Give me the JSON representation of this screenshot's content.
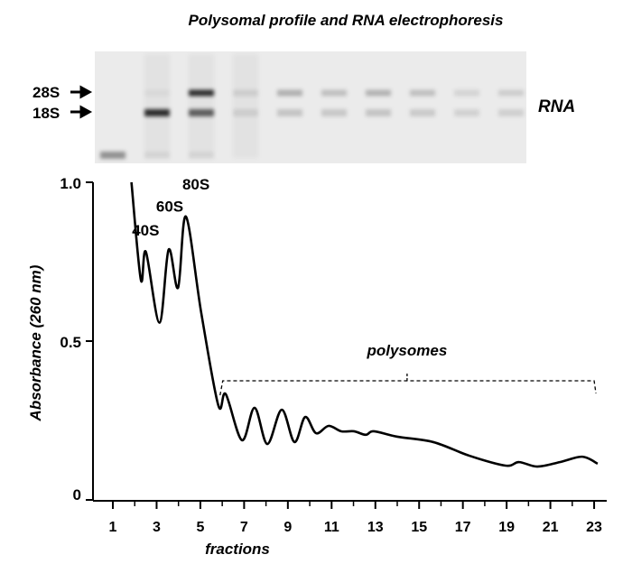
{
  "chart_data": {
    "type": "line",
    "title": "Polysomal profile and RNA electrophoresis",
    "xlabel": "fractions",
    "ylabel": "Absorbance (260 nm)",
    "xlim": [
      0,
      23.3
    ],
    "ylim": [
      0,
      1.0
    ],
    "xticks": [
      1,
      3,
      5,
      7,
      9,
      11,
      13,
      15,
      17,
      19,
      21,
      23
    ],
    "xminor": [
      2,
      4,
      6,
      8,
      10,
      12,
      14,
      16,
      18,
      20,
      22
    ],
    "yticks": [
      {
        "value": 0,
        "label": "0"
      },
      {
        "value": 0.5,
        "label": "0.5"
      },
      {
        "value": 1.0,
        "label": "1.0"
      }
    ],
    "grid": false,
    "series": [
      {
        "x": [
          1.85,
          2.28,
          2.51,
          3.13,
          3.55,
          3.98,
          4.34,
          5.04,
          5.82,
          6.16,
          6.9,
          7.48,
          8.06,
          8.72,
          9.3,
          9.79,
          10.29,
          10.86,
          11.44,
          12.02,
          12.56,
          12.93,
          14.0,
          15.65,
          17.3,
          18.95,
          19.57,
          20.4,
          21.43,
          22.46,
          23.16
        ],
        "y": [
          1.0,
          0.693,
          0.781,
          0.558,
          0.788,
          0.668,
          0.892,
          0.589,
          0.298,
          0.333,
          0.188,
          0.29,
          0.176,
          0.284,
          0.182,
          0.261,
          0.21,
          0.233,
          0.216,
          0.216,
          0.205,
          0.216,
          0.199,
          0.182,
          0.139,
          0.108,
          0.119,
          0.105,
          0.119,
          0.136,
          0.114
        ]
      }
    ],
    "annotations": [
      {
        "text": "40S",
        "x": 2.5,
        "y": 0.85
      },
      {
        "text": "60S",
        "x": 3.6,
        "y": 0.925
      },
      {
        "text": "80S",
        "x": 4.8,
        "y": 0.995
      }
    ],
    "bracket": {
      "text": "polysomes",
      "x_start": 5.9,
      "x_end": 23.0,
      "y": 0.375
    }
  },
  "gel": {
    "label": "RNA",
    "markers": [
      "28S",
      "18S"
    ],
    "lanes": [
      {
        "s28": 0.0,
        "s18": 0.0,
        "low": 0.45
      },
      {
        "s28": 0.05,
        "s18": 0.95,
        "low": 0.08
      },
      {
        "s28": 0.95,
        "s18": 0.7,
        "low": 0.08
      },
      {
        "s28": 0.12,
        "s18": 0.12,
        "low": 0.0
      },
      {
        "s28": 0.3,
        "s18": 0.2,
        "low": 0.0
      },
      {
        "s28": 0.22,
        "s18": 0.18,
        "low": 0.0
      },
      {
        "s28": 0.28,
        "s18": 0.2,
        "low": 0.0
      },
      {
        "s28": 0.22,
        "s18": 0.17,
        "low": 0.0
      },
      {
        "s28": 0.12,
        "s18": 0.13,
        "low": 0.0
      },
      {
        "s28": 0.15,
        "s18": 0.14,
        "low": 0.0
      }
    ]
  }
}
